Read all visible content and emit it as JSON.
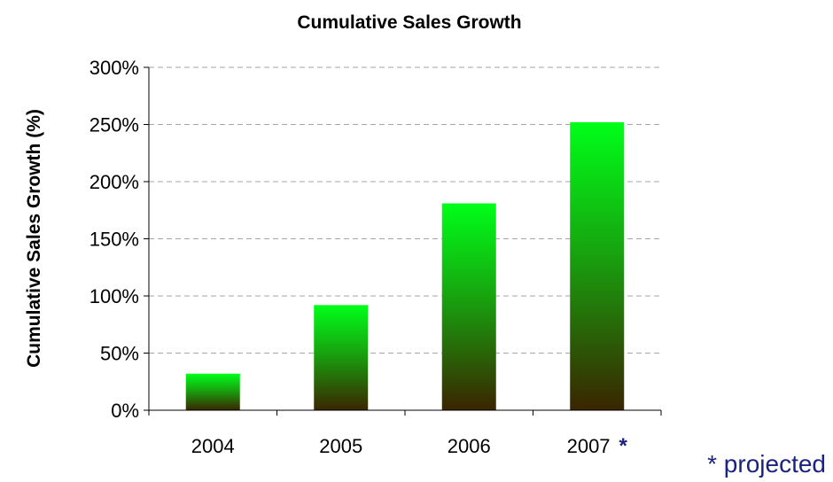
{
  "chart_data": {
    "type": "bar",
    "title": "Cumulative Sales Growth",
    "ylabel": "Cumulative Sales Growth (%)",
    "xlabel": "",
    "categories": [
      "2004",
      "2005",
      "2006",
      "2007"
    ],
    "category_markers": [
      "",
      "",
      "",
      "*"
    ],
    "values": [
      32,
      92,
      181,
      252
    ],
    "ylim": [
      0,
      300
    ],
    "yticks": [
      0,
      50,
      100,
      150,
      200,
      250,
      300
    ],
    "ytick_labels": [
      "0%",
      "50%",
      "100%",
      "150%",
      "200%",
      "250%",
      "300%"
    ],
    "grid": "horizontal-dashed",
    "legend": "none",
    "footnote": "* projected",
    "colors": {
      "bar_top": "#00ff19",
      "bar_bottom": "#3a2500",
      "footnote": "#1a237e",
      "grid": "#a6a6a6",
      "axis": "#000000"
    }
  }
}
